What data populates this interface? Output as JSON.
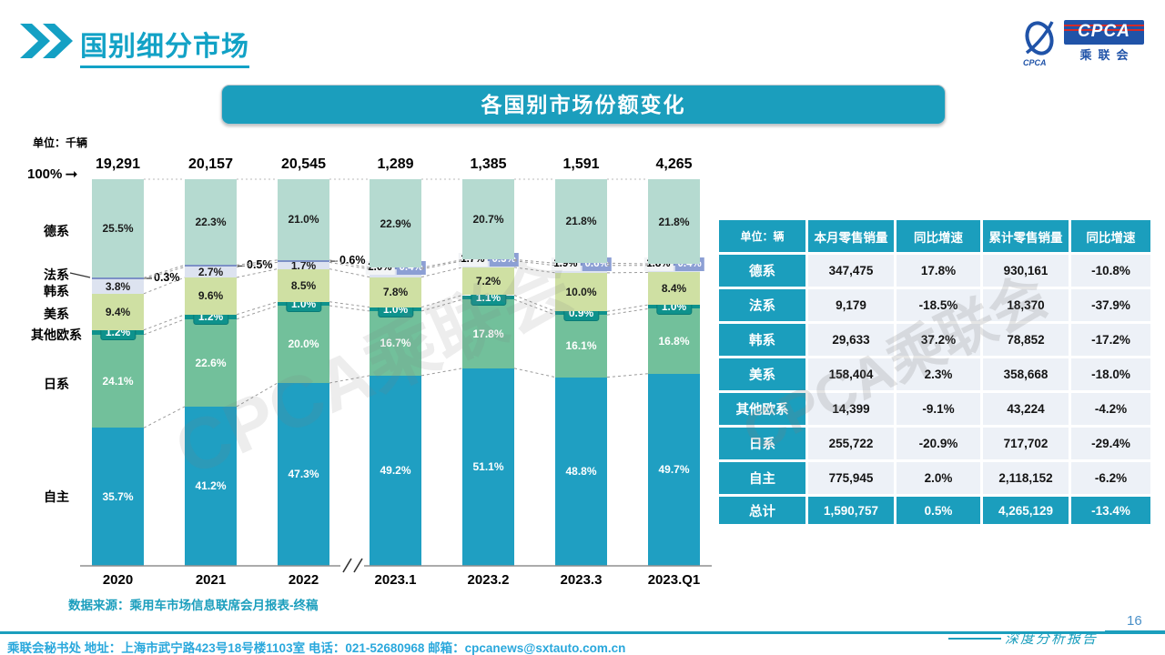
{
  "slide": {
    "title": "国别细分市场",
    "banner_title": "各国别市场份额变化",
    "unit_label": "单位：千辆",
    "hundred_percent_label": "100%",
    "source_note": "数据来源：乘用车市场信息联席会月报表-终稿",
    "footer": "乘联会秘书处  地址：上海市武宁路423号18号楼1103室 电话：021-52680968  邮箱：cpcanews@sxtauto.com.cn",
    "page_number": "16",
    "report_badge": "深度分析报告",
    "watermark": "CPCA乘联会",
    "logo": {
      "main": "CPCA",
      "sub": "乘联会",
      "swoosh_text": "CPCA"
    }
  },
  "colors": {
    "teal": "#1B9EBD",
    "title_teal": "#12A2C6",
    "footer_text": "#2AA8DC",
    "page_number_blue": "#4A90C8",
    "logo_navy": "#2053A8",
    "logo_red": "#D42B28",
    "table_cell_bg": "#EDF1F7",
    "french_badge": "#8C9FD4",
    "other_euro_badge": "#0E928C"
  },
  "chart_data": {
    "type": "bar",
    "stacked": true,
    "title": "各国别市场份额变化",
    "unit": "千辆",
    "ylim": [
      0,
      100
    ],
    "grid": false,
    "categories": [
      "2020",
      "2021",
      "2022",
      "2023.1",
      "2023.2",
      "2023.3",
      "2023.Q1"
    ],
    "totals": [
      "19,291",
      "20,157",
      "20,545",
      "1,289",
      "1,385",
      "1,591",
      "4,265"
    ],
    "axis_break_after_index": 2,
    "series": [
      {
        "name": "自主",
        "color": "#1F9FC2",
        "values": [
          35.7,
          41.2,
          47.3,
          49.2,
          51.1,
          48.8,
          49.7
        ]
      },
      {
        "name": "日系",
        "color": "#72C09B",
        "values": [
          24.1,
          22.6,
          20.0,
          16.7,
          17.8,
          16.1,
          16.8
        ]
      },
      {
        "name": "其他欧系",
        "color": "#0E928C",
        "values": [
          1.2,
          1.2,
          1.0,
          1.0,
          1.1,
          0.9,
          1.0
        ]
      },
      {
        "name": "美系",
        "color": "#CFE0A3",
        "values": [
          9.4,
          9.6,
          8.5,
          7.8,
          7.2,
          10.0,
          8.4
        ]
      },
      {
        "name": "韩系",
        "color": "#DDE3F0",
        "values": [
          3.8,
          2.7,
          1.7,
          2.0,
          1.7,
          1.9,
          1.8
        ]
      },
      {
        "name": "法系",
        "color": "#7C90C6",
        "values": [
          0.3,
          0.5,
          0.6,
          0.4,
          0.3,
          0.6,
          0.4
        ]
      },
      {
        "name": "德系",
        "color": "#B5DAD0",
        "values": [
          25.5,
          22.3,
          21.0,
          22.9,
          20.7,
          21.8,
          21.8
        ]
      }
    ]
  },
  "table": {
    "unit_header": "单位：辆",
    "headers": [
      "本月零售销量",
      "同比增速",
      "累计零售销量",
      "同比增速"
    ],
    "rows": [
      {
        "label": "德系",
        "cells": [
          "347,475",
          "17.8%",
          "930,161",
          "-10.8%"
        ]
      },
      {
        "label": "法系",
        "cells": [
          "9,179",
          "-18.5%",
          "18,370",
          "-37.9%"
        ]
      },
      {
        "label": "韩系",
        "cells": [
          "29,633",
          "37.2%",
          "78,852",
          "-17.2%"
        ]
      },
      {
        "label": "美系",
        "cells": [
          "158,404",
          "2.3%",
          "358,668",
          "-18.0%"
        ]
      },
      {
        "label": "其他欧系",
        "cells": [
          "14,399",
          "-9.1%",
          "43,224",
          "-4.2%"
        ]
      },
      {
        "label": "日系",
        "cells": [
          "255,722",
          "-20.9%",
          "717,702",
          "-29.4%"
        ]
      },
      {
        "label": "自主",
        "cells": [
          "775,945",
          "2.0%",
          "2,118,152",
          "-6.2%"
        ]
      }
    ],
    "total_row": {
      "label": "总计",
      "cells": [
        "1,590,757",
        "0.5%",
        "4,265,129",
        "-13.4%"
      ]
    }
  }
}
